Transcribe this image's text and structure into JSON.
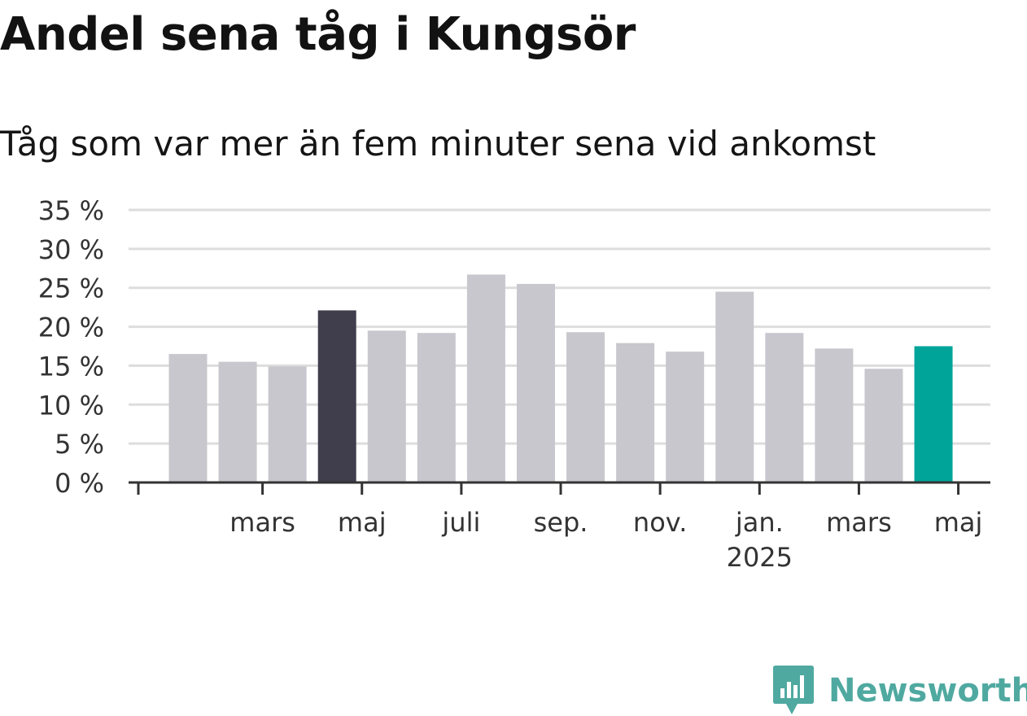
{
  "header": {
    "title": "Andel sena tåg i Kungsör",
    "subtitle": "Tåg som var mer än fem minuter sena vid ankomst"
  },
  "logo": {
    "text": "Newsworthy",
    "icon": "newsworthy-logo-icon",
    "color": "#4fa9a0"
  },
  "colors": {
    "default_bar": "#c8c7cd",
    "highlight_dark": "#403e4d",
    "highlight_latest": "#00a499",
    "grid": "#dddddd",
    "axis": "#333333"
  },
  "chart_data": {
    "type": "bar",
    "categories": [
      "2024-02",
      "2024-03",
      "2024-04",
      "2024-05",
      "2024-06",
      "2024-07",
      "2024-08",
      "2024-09",
      "2024-10",
      "2024-11",
      "2024-12",
      "2025-01",
      "2025-02",
      "2025-03",
      "2025-04",
      "2025-05"
    ],
    "values": [
      16.5,
      15.5,
      14.9,
      22.1,
      19.5,
      19.2,
      26.7,
      25.5,
      19.3,
      17.9,
      16.8,
      24.5,
      19.2,
      17.2,
      14.6,
      17.5
    ],
    "highlight": {
      "2024-05": "#403e4d",
      "2025-05": "#00a499"
    },
    "ylim": [
      0,
      35
    ],
    "yticks": [
      0,
      5,
      10,
      15,
      20,
      25,
      30,
      35
    ],
    "ytick_labels": [
      "0 %",
      "5 %",
      "10 %",
      "15 %",
      "20 %",
      "25 %",
      "30 %",
      "35 %"
    ],
    "xtick_labels": [
      {
        "at": "2024-03",
        "label": "mars"
      },
      {
        "at": "2024-05",
        "label": "maj"
      },
      {
        "at": "2024-07",
        "label": "juli"
      },
      {
        "at": "2024-09",
        "label": "sep."
      },
      {
        "at": "2024-11",
        "label": "nov."
      },
      {
        "at": "2025-01",
        "label": "jan.",
        "label2": "2025"
      },
      {
        "at": "2025-03",
        "label": "mars"
      },
      {
        "at": "2025-05",
        "label": "maj"
      }
    ],
    "grid": true,
    "xlabel": "",
    "ylabel": ""
  }
}
